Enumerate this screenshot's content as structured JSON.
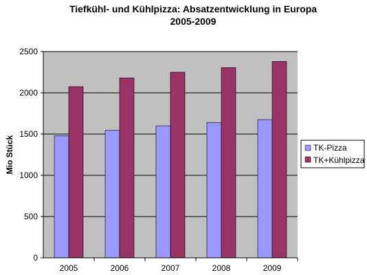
{
  "chart_data": {
    "type": "bar",
    "title_lines": [
      "Tiefkühl- und Kühlpizza: Absatzentwicklung in Europa",
      "2005-2009"
    ],
    "ylabel": "Mio Stück",
    "xlabel": "",
    "categories": [
      "2005",
      "2006",
      "2007",
      "2008",
      "2009"
    ],
    "series": [
      {
        "name": "TK-Pizza",
        "values": [
          1480,
          1545,
          1600,
          1640,
          1675
        ],
        "color": "#9999FF"
      },
      {
        "name": "TK+Kühlpizza",
        "values": [
          2075,
          2180,
          2250,
          2305,
          2380
        ],
        "color": "#993366"
      }
    ],
    "ylim": [
      0,
      2500
    ],
    "yticks": [
      0,
      500,
      1000,
      1500,
      2000,
      2500
    ],
    "plot_background": "#C0C0C0",
    "grid": true,
    "legend_position": "right"
  }
}
